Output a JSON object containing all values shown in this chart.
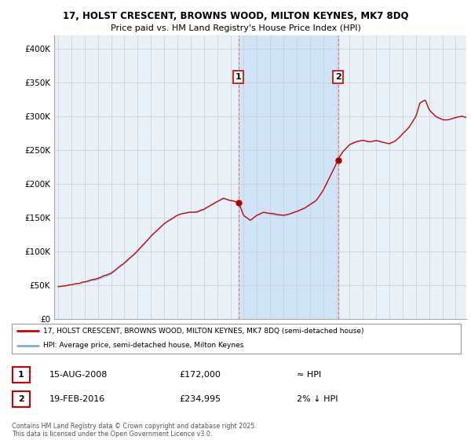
{
  "title_line1": "17, HOLST CRESCENT, BROWNS WOOD, MILTON KEYNES, MK7 8DQ",
  "title_line2": "Price paid vs. HM Land Registry's House Price Index (HPI)",
  "bg_color": "#ffffff",
  "plot_bg_color": "#e8f0f8",
  "grid_color": "#cccccc",
  "red_color": "#cc0000",
  "blue_color": "#88aadd",
  "shaded_color": "#d0e4f7",
  "vline_color": "#dd6666",
  "legend_entry1": "17, HOLST CRESCENT, BROWNS WOOD, MILTON KEYNES, MK7 8DQ (semi-detached house)",
  "legend_entry2": "HPI: Average price, semi-detached house, Milton Keynes",
  "table_row1": [
    "1",
    "15-AUG-2008",
    "£172,000",
    "≈ HPI"
  ],
  "table_row2": [
    "2",
    "19-FEB-2016",
    "£234,995",
    "2% ↓ HPI"
  ],
  "footer": "Contains HM Land Registry data © Crown copyright and database right 2025.\nThis data is licensed under the Open Government Licence v3.0.",
  "ylim": [
    0,
    420000
  ],
  "yticks": [
    0,
    50000,
    100000,
    150000,
    200000,
    250000,
    300000,
    350000,
    400000
  ],
  "ytick_labels": [
    "£0",
    "£50K",
    "£100K",
    "£150K",
    "£200K",
    "£250K",
    "£300K",
    "£350K",
    "£400K"
  ],
  "sale1_year": 2008.625,
  "sale1_price": 172000,
  "sale2_year": 2016.083,
  "sale2_price": 234995,
  "xstart": 1994.7,
  "xend": 2025.8
}
